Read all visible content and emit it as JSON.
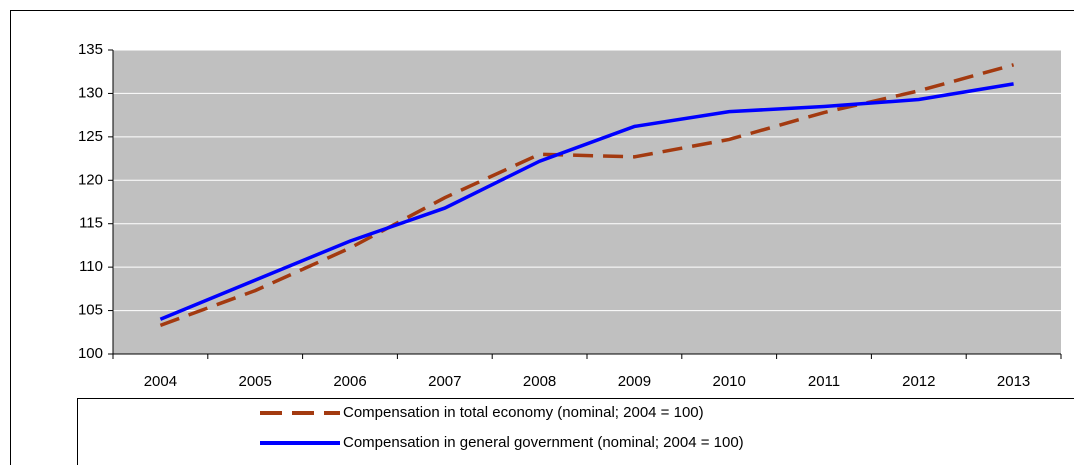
{
  "chart_data": {
    "type": "line",
    "categories": [
      "2004",
      "2005",
      "2006",
      "2007",
      "2008",
      "2009",
      "2010",
      "2011",
      "2012",
      "2013"
    ],
    "series": [
      {
        "name": "Compensation in total economy (nominal; 2004 = 100)",
        "color": "#a33a10",
        "dashed": true,
        "values": [
          103.3,
          107.3,
          112.2,
          118.0,
          123.0,
          122.7,
          124.7,
          127.8,
          130.3,
          133.3
        ]
      },
      {
        "name": "Compensation in general government (nominal; 2004 = 100)",
        "color": "#0000ff",
        "dashed": false,
        "values": [
          104.0,
          108.5,
          113.0,
          116.8,
          122.2,
          126.2,
          127.9,
          128.5,
          129.3,
          131.1
        ]
      }
    ],
    "ylim": [
      100,
      135
    ],
    "yticks": [
      100,
      105,
      110,
      115,
      120,
      125,
      130,
      135
    ],
    "grid": true
  }
}
